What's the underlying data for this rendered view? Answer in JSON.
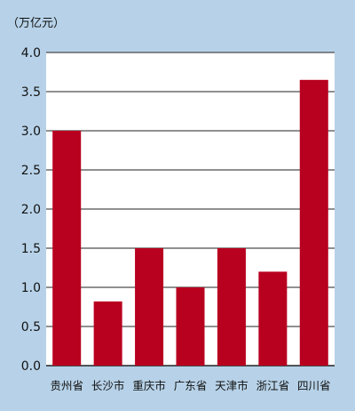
{
  "chart_data": {
    "type": "bar",
    "unit_label": "（万亿元）",
    "categories": [
      "贵州省",
      "长沙市",
      "重庆市",
      "广东省",
      "天津市",
      "浙江省",
      "四川省"
    ],
    "values": [
      3.0,
      0.82,
      1.5,
      1.0,
      1.5,
      1.2,
      3.65
    ],
    "ylim": [
      0,
      4.0
    ],
    "yticks": [
      "0.0",
      "0.5",
      "1.0",
      "1.5",
      "2.0",
      "2.5",
      "3.0",
      "3.5",
      "4.0"
    ],
    "grid": true,
    "legend": "none",
    "colors": {
      "background": "#b7d2e8",
      "plot_background": "#ffffff",
      "bar": "#b8001f",
      "grid": "#222222"
    }
  }
}
